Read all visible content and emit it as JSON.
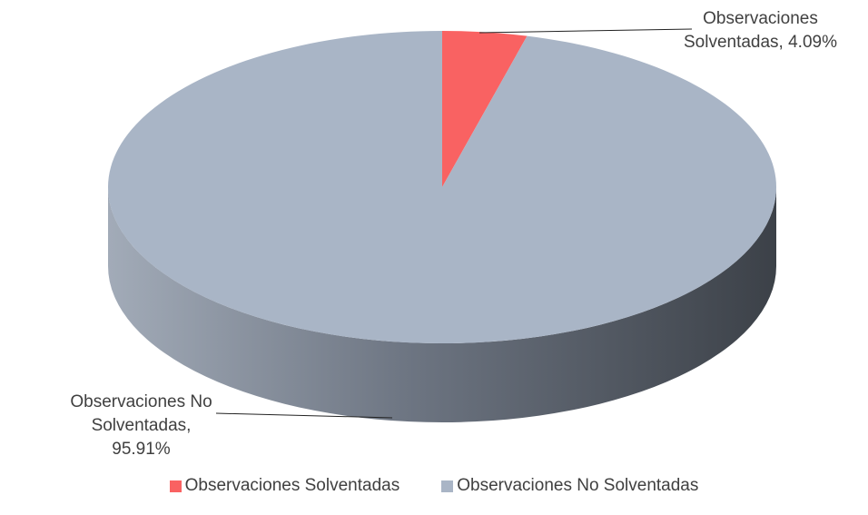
{
  "chart_data": {
    "type": "pie3d",
    "categories": [
      "Observaciones Solventadas",
      "Observaciones No Solventadas"
    ],
    "values": [
      4.09,
      95.91
    ],
    "value_labels": [
      "Observaciones Solventadas, 4.09%",
      "Observaciones No Solventadas, 95.91%"
    ],
    "colors": [
      "#f96262",
      "#a9b5c6"
    ]
  }
}
